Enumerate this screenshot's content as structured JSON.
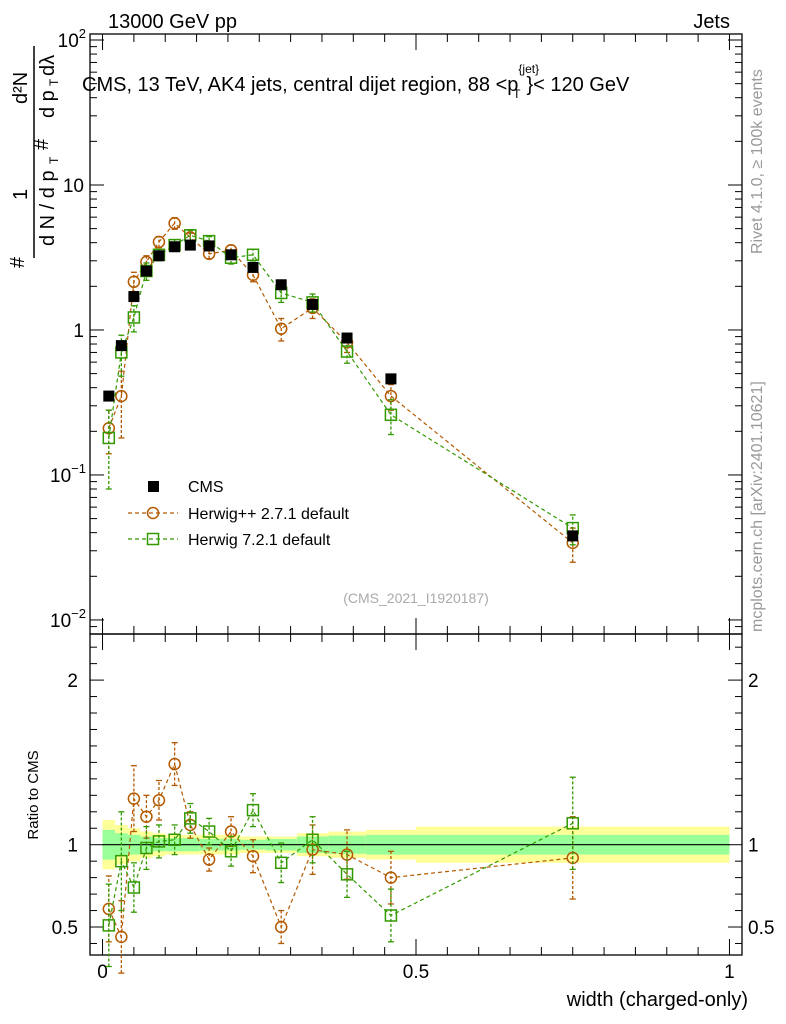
{
  "header": {
    "left": "13000 GeV pp",
    "right": "Jets",
    "watermark": "(CMS_2021_I1920187)",
    "side_top": "Rivet 4.1.0, ≥ 100k events",
    "side_bottom": "mcplots.cern.ch [arXiv:2401.10621]"
  },
  "ylabel_parts": {
    "hash": "#",
    "one": "1",
    "denom": "d N / d p",
    "t": "T",
    "d2n": "d²N",
    "dpt": "d p",
    "dlambda": "dλ"
  },
  "chart_data": [
    {
      "type": "scatter",
      "title": "CMS, 13 TeV, AK4 jets, central dijet region, 88 < p_T^{jet} < 120 GeV",
      "title_parts": {
        "main": "CMS, 13 TeV, AK4 jets, central dijet region, 88 <p",
        "sup": "{jet}",
        "sub": "T",
        "tail": "}< 120 GeV"
      },
      "xlabel": "width (charged-only)",
      "xlim": [
        -0.02,
        1.02
      ],
      "ylim": [
        0.008,
        110
      ],
      "yscale": "log",
      "yticks": [
        {
          "value": 0.01,
          "base": "10",
          "exp": "−2"
        },
        {
          "value": 0.1,
          "base": "10",
          "exp": "−1"
        },
        {
          "value": 1,
          "label": "1"
        },
        {
          "value": 10,
          "label": "10"
        },
        {
          "value": 100,
          "base": "10",
          "exp": "2"
        }
      ],
      "legend": {
        "position": "middle-left",
        "entries": [
          "CMS",
          "Herwig++ 2.7.1 default",
          "Herwig 7.2.1 default"
        ]
      },
      "colors": {
        "cms": "#000000",
        "herwigpp": "#b35900",
        "herwig7": "#339900"
      },
      "series": [
        {
          "name": "CMS",
          "x": [
            0.01,
            0.03,
            0.05,
            0.07,
            0.09,
            0.115,
            0.14,
            0.17,
            0.205,
            0.24,
            0.285,
            0.335,
            0.39,
            0.46,
            0.75
          ],
          "y": [
            0.35,
            0.78,
            1.7,
            2.55,
            3.25,
            3.75,
            3.85,
            3.8,
            3.3,
            2.7,
            2.05,
            1.5,
            0.88,
            0.46,
            0.038
          ]
        },
        {
          "name": "Herwig++ 2.7.1 default",
          "x": [
            0.01,
            0.03,
            0.05,
            0.07,
            0.09,
            0.115,
            0.14,
            0.17,
            0.205,
            0.24,
            0.285,
            0.335,
            0.39,
            0.46,
            0.75
          ],
          "y": [
            0.21,
            0.35,
            2.15,
            2.95,
            4.05,
            5.45,
            4.35,
            3.35,
            3.55,
            2.4,
            1.02,
            1.42,
            0.82,
            0.35,
            0.034
          ],
          "yerr": [
            0.07,
            0.17,
            0.35,
            0.3,
            0.35,
            0.5,
            0.3,
            0.25,
            0.3,
            0.25,
            0.18,
            0.22,
            0.12,
            0.07,
            0.009
          ]
        },
        {
          "name": "Herwig 7.2.1 default",
          "x": [
            0.01,
            0.03,
            0.05,
            0.07,
            0.09,
            0.115,
            0.14,
            0.17,
            0.205,
            0.24,
            0.285,
            0.335,
            0.39,
            0.46,
            0.75
          ],
          "y": [
            0.18,
            0.7,
            1.22,
            2.55,
            3.3,
            3.85,
            4.5,
            4.1,
            3.15,
            3.3,
            1.8,
            1.55,
            0.71,
            0.26,
            0.043
          ],
          "yerr": [
            0.1,
            0.22,
            0.25,
            0.35,
            0.3,
            0.35,
            0.35,
            0.3,
            0.3,
            0.3,
            0.25,
            0.22,
            0.12,
            0.07,
            0.01
          ]
        }
      ]
    },
    {
      "type": "scatter",
      "ylabel": "Ratio to CMS",
      "xlabel": "width (charged-only)",
      "xlim": [
        -0.02,
        1.02
      ],
      "ylim": [
        0.33,
        2.28
      ],
      "yticks": [
        0.5,
        1,
        2
      ],
      "xticks": [
        0,
        0.5,
        1
      ],
      "reference_line": 1,
      "bands": {
        "edges": [
          0.0,
          0.02,
          0.04,
          0.06,
          0.08,
          0.1,
          0.13,
          0.155,
          0.19,
          0.22,
          0.26,
          0.31,
          0.36,
          0.42,
          0.5,
          1.0
        ],
        "yellow_half": [
          0.15,
          0.12,
          0.1,
          0.08,
          0.07,
          0.06,
          0.06,
          0.06,
          0.06,
          0.05,
          0.05,
          0.07,
          0.08,
          0.09,
          0.11
        ],
        "green_half": [
          0.09,
          0.07,
          0.06,
          0.05,
          0.04,
          0.04,
          0.04,
          0.035,
          0.035,
          0.03,
          0.035,
          0.05,
          0.055,
          0.06,
          0.06
        ],
        "colors": {
          "yellow": "#ffff99",
          "green": "#99ff99"
        }
      },
      "series": [
        {
          "name": "Herwig++ 2.7.1 default",
          "x": [
            0.01,
            0.03,
            0.05,
            0.07,
            0.09,
            0.115,
            0.14,
            0.17,
            0.205,
            0.24,
            0.285,
            0.335,
            0.39,
            0.46,
            0.75
          ],
          "y": [
            0.61,
            0.44,
            1.28,
            1.17,
            1.27,
            1.49,
            1.12,
            0.91,
            1.08,
            0.93,
            0.5,
            0.97,
            0.94,
            0.8,
            0.92
          ],
          "yerr": [
            0.2,
            0.22,
            0.2,
            0.13,
            0.12,
            0.13,
            0.08,
            0.07,
            0.09,
            0.1,
            0.1,
            0.15,
            0.15,
            0.16,
            0.25
          ]
        },
        {
          "name": "Herwig 7.2.1 default",
          "x": [
            0.01,
            0.03,
            0.05,
            0.07,
            0.09,
            0.115,
            0.14,
            0.17,
            0.205,
            0.24,
            0.285,
            0.335,
            0.39,
            0.46,
            0.75
          ],
          "y": [
            0.51,
            0.9,
            0.74,
            0.98,
            1.02,
            1.03,
            1.16,
            1.08,
            0.96,
            1.21,
            0.89,
            1.03,
            0.82,
            0.57,
            1.13
          ],
          "yerr": [
            0.25,
            0.3,
            0.15,
            0.13,
            0.1,
            0.09,
            0.09,
            0.08,
            0.09,
            0.1,
            0.12,
            0.14,
            0.14,
            0.16,
            0.28
          ]
        }
      ]
    }
  ]
}
